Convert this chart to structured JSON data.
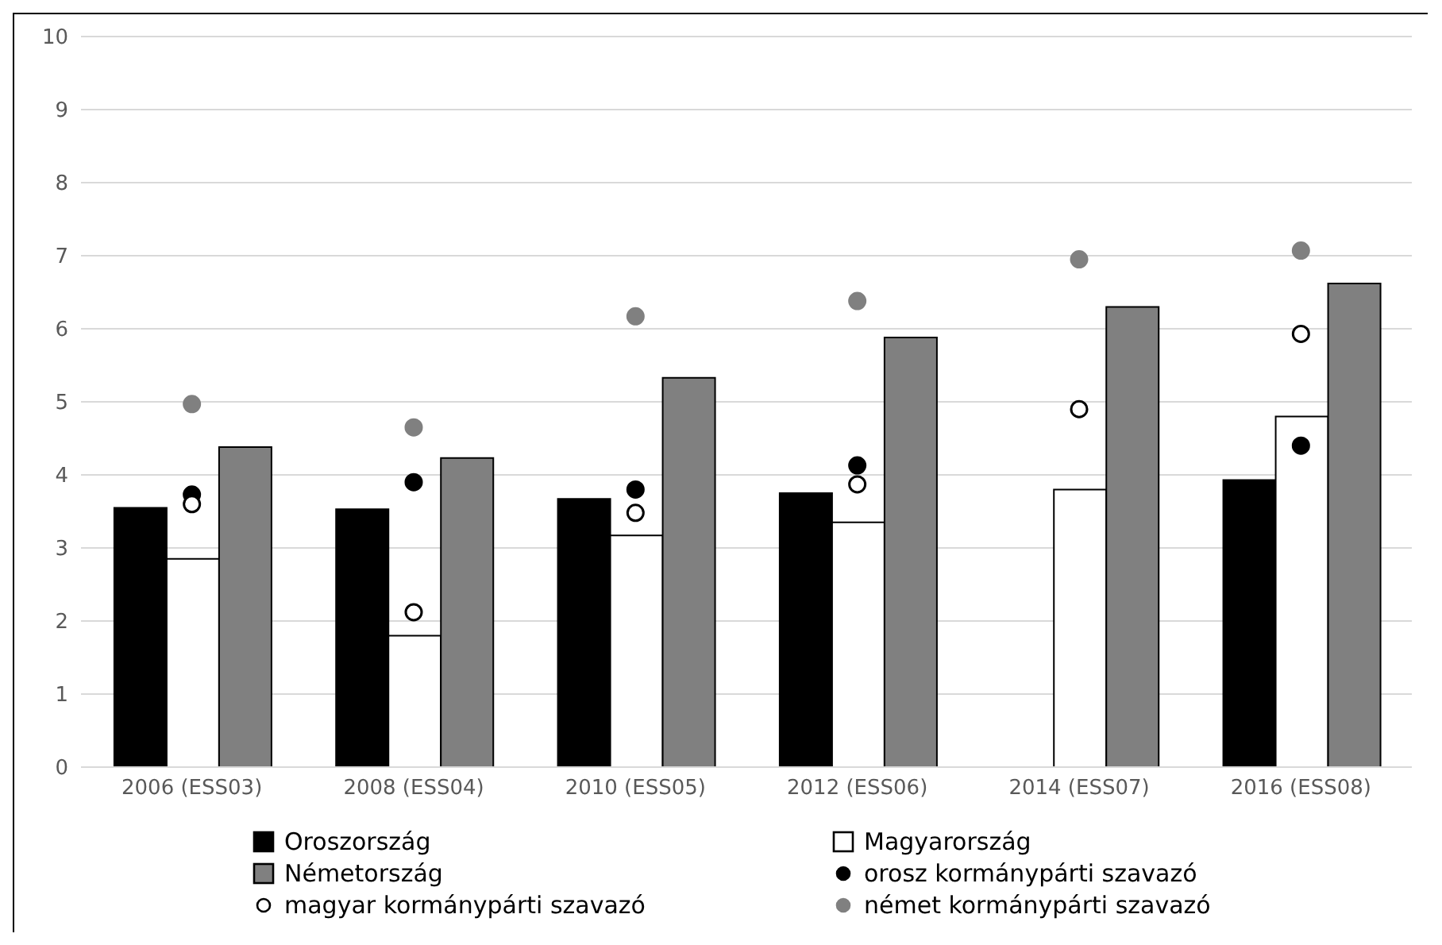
{
  "chart_data": {
    "type": "bar",
    "categories": [
      "2006 (ESS03)",
      "2008 (ESS04)",
      "2010 (ESS05)",
      "2012 (ESS06)",
      "2014 (ESS07)",
      "2016 (ESS08)"
    ],
    "series": [
      {
        "name": "Oroszország",
        "type": "bar",
        "color": "#000000",
        "values": [
          3.55,
          3.53,
          3.67,
          3.75,
          null,
          3.93
        ]
      },
      {
        "name": "Magyarország",
        "type": "bar",
        "color": "#ffffff",
        "values": [
          2.85,
          1.8,
          3.17,
          3.35,
          3.8,
          4.8
        ]
      },
      {
        "name": "Németország",
        "type": "bar",
        "color": "#808080",
        "values": [
          4.38,
          4.23,
          5.33,
          5.88,
          6.3,
          6.62
        ]
      },
      {
        "name": "orosz kormánypárti szavazó",
        "type": "scatter",
        "marker": "circle",
        "color": "#000000",
        "values": [
          3.73,
          3.9,
          3.8,
          4.13,
          null,
          4.4
        ]
      },
      {
        "name": "magyar kormánypárti szavazó",
        "type": "scatter",
        "marker": "circle",
        "color": "#ffffff",
        "values": [
          3.6,
          2.12,
          3.48,
          3.87,
          4.9,
          5.93
        ]
      },
      {
        "name": "német kormánypárti szavazó",
        "type": "scatter",
        "marker": "circle",
        "color": "#808080",
        "values": [
          4.97,
          4.65,
          6.17,
          6.38,
          6.95,
          7.07
        ]
      }
    ],
    "ylim": [
      0,
      10
    ],
    "yticks": [
      0,
      1,
      2,
      3,
      4,
      5,
      6,
      7,
      8,
      9,
      10
    ],
    "grid": "y",
    "legend": "bottom"
  }
}
